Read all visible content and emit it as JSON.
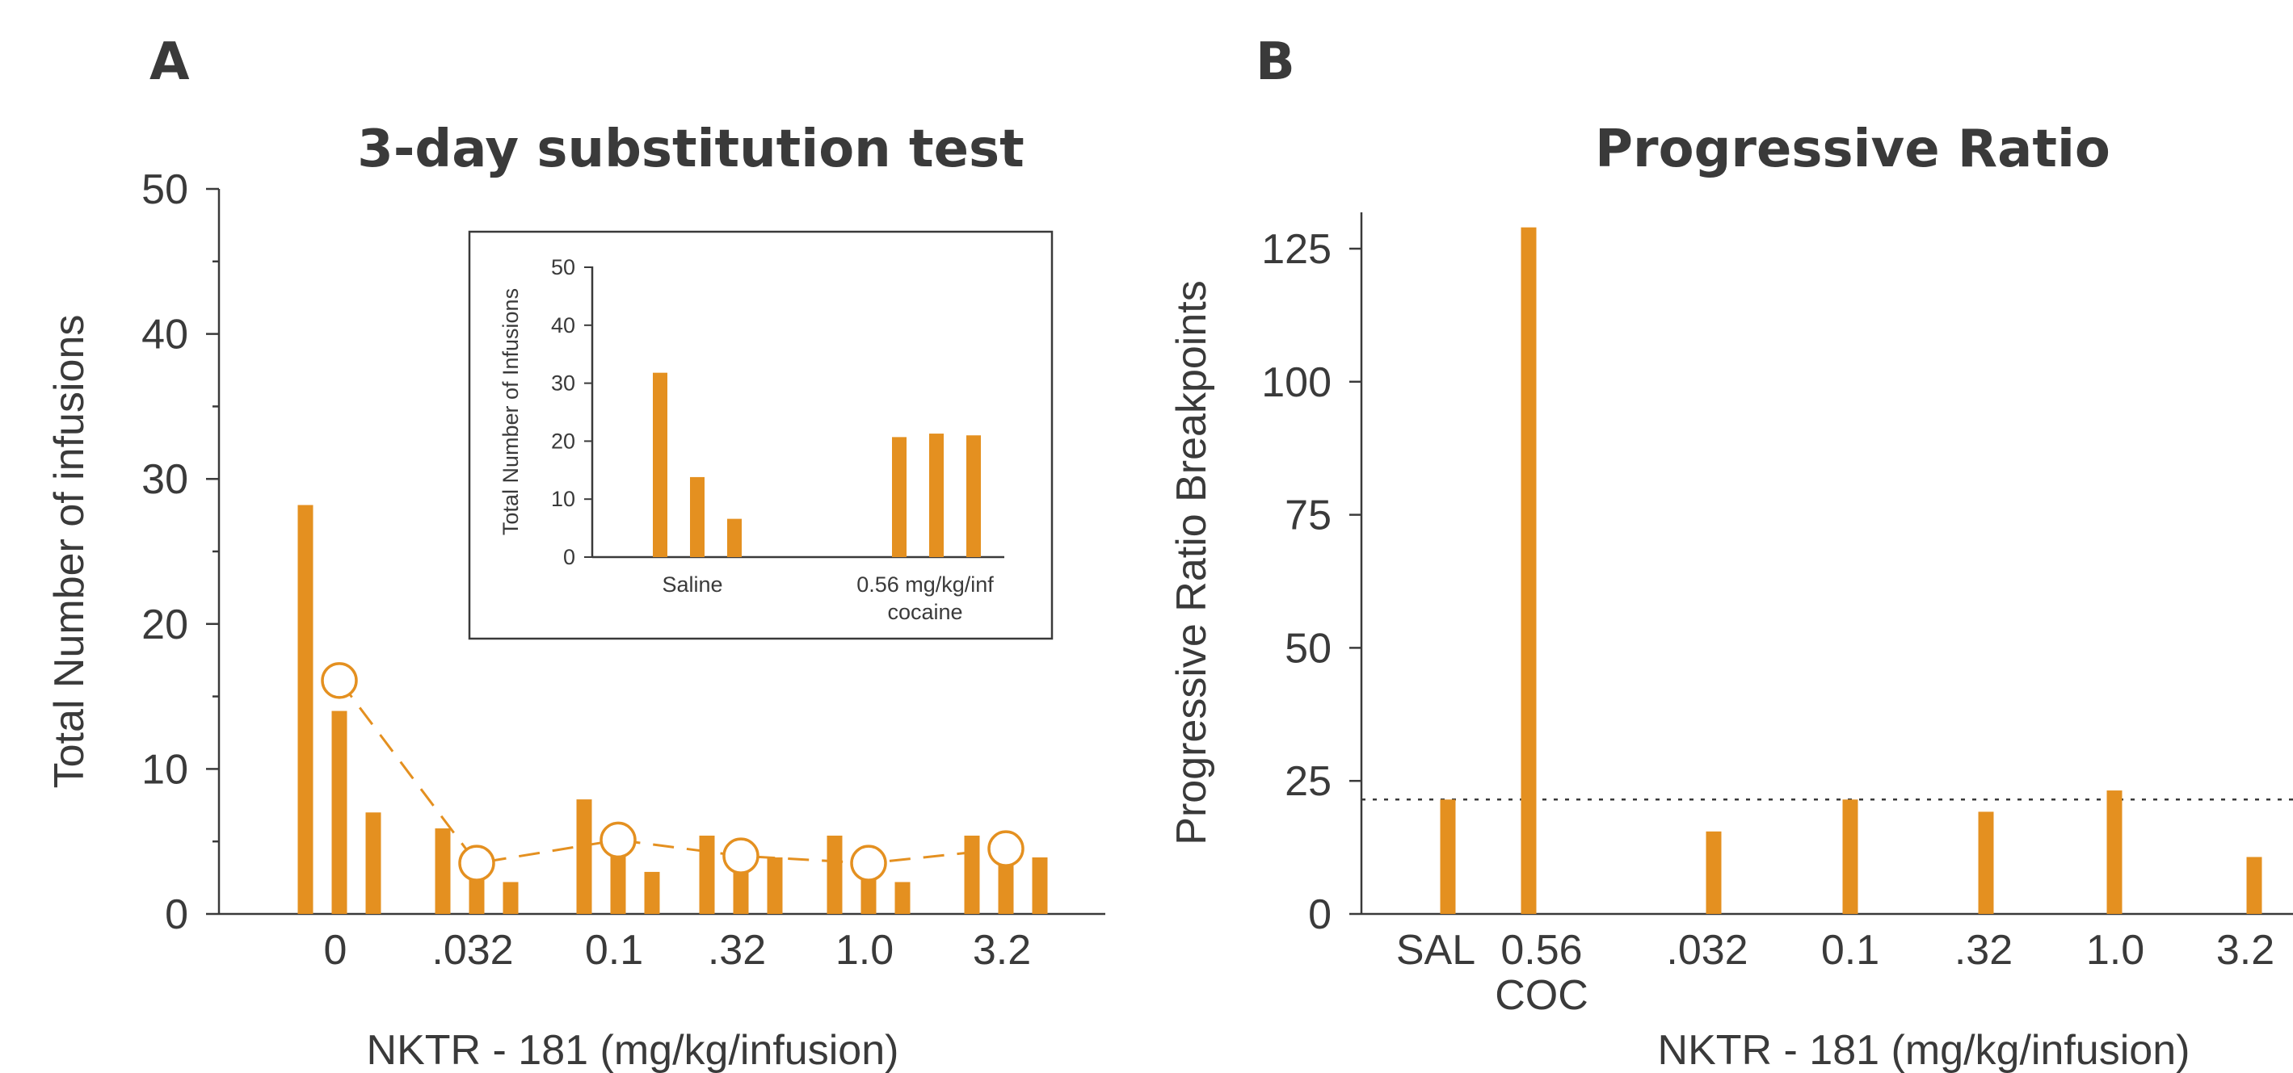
{
  "colors": {
    "bar": "#e49020",
    "text": "#3a3a3a"
  },
  "chart_data": [
    {
      "panel": "A",
      "type": "bar",
      "title": "3-day substitution test",
      "xlabel": "NKTR - 181 (mg/kg/infusion)",
      "ylabel": "Total Number of infusions",
      "ylim": [
        0,
        50
      ],
      "yticks": [
        "0",
        "10",
        "20",
        "30",
        "40",
        "50"
      ],
      "categories": [
        "0",
        ".032",
        "0.1",
        ".32",
        "1.0",
        "3.2"
      ],
      "series": [
        {
          "values": [
            28.2,
            5.9,
            7.9,
            5.4,
            5.4,
            5.4
          ]
        },
        {
          "values": [
            14.0,
            3.4,
            5.0,
            4.0,
            3.4,
            5.0
          ]
        },
        {
          "values": [
            7.0,
            2.2,
            2.9,
            3.9,
            2.2,
            3.9
          ]
        }
      ],
      "mean_line": {
        "style": "dashed with open circles",
        "values": [
          16.1,
          3.5,
          5.1,
          4.0,
          3.5,
          4.5
        ]
      },
      "inset": {
        "type": "bar",
        "ylabel": "Total Number of Infusions",
        "ylim": [
          0,
          50
        ],
        "yticks": [
          "0",
          "10",
          "20",
          "30",
          "40",
          "50"
        ],
        "groups": [
          {
            "label": "Saline",
            "values": [
              31.8,
              13.8,
              6.6
            ]
          },
          {
            "label": "0.56 mg/kg/inf",
            "label2": "cocaine",
            "values": [
              20.7,
              21.3,
              21.0
            ]
          }
        ]
      }
    },
    {
      "panel": "B",
      "type": "bar",
      "title": "Progressive Ratio",
      "xlabel": "NKTR - 181 (mg/kg/infusion)",
      "ylabel": "Progressive Ratio Breakpoints",
      "ylim": [
        0,
        130
      ],
      "yticks": [
        "0",
        "25",
        "50",
        "75",
        "100",
        "125"
      ],
      "categories": [
        {
          "label": "SAL",
          "label2": ""
        },
        {
          "label": "0.56",
          "label2": "COC"
        },
        {
          "label": ".032",
          "label2": ""
        },
        {
          "label": "0.1",
          "label2": ""
        },
        {
          "label": ".32",
          "label2": ""
        },
        {
          "label": "1.0",
          "label2": ""
        },
        {
          "label": "3.2",
          "label2": ""
        }
      ],
      "values": [
        21.5,
        129,
        15.5,
        21.5,
        19.2,
        23.2,
        10.7
      ],
      "reference_line": {
        "style": "dotted",
        "value": 21.5
      }
    }
  ]
}
